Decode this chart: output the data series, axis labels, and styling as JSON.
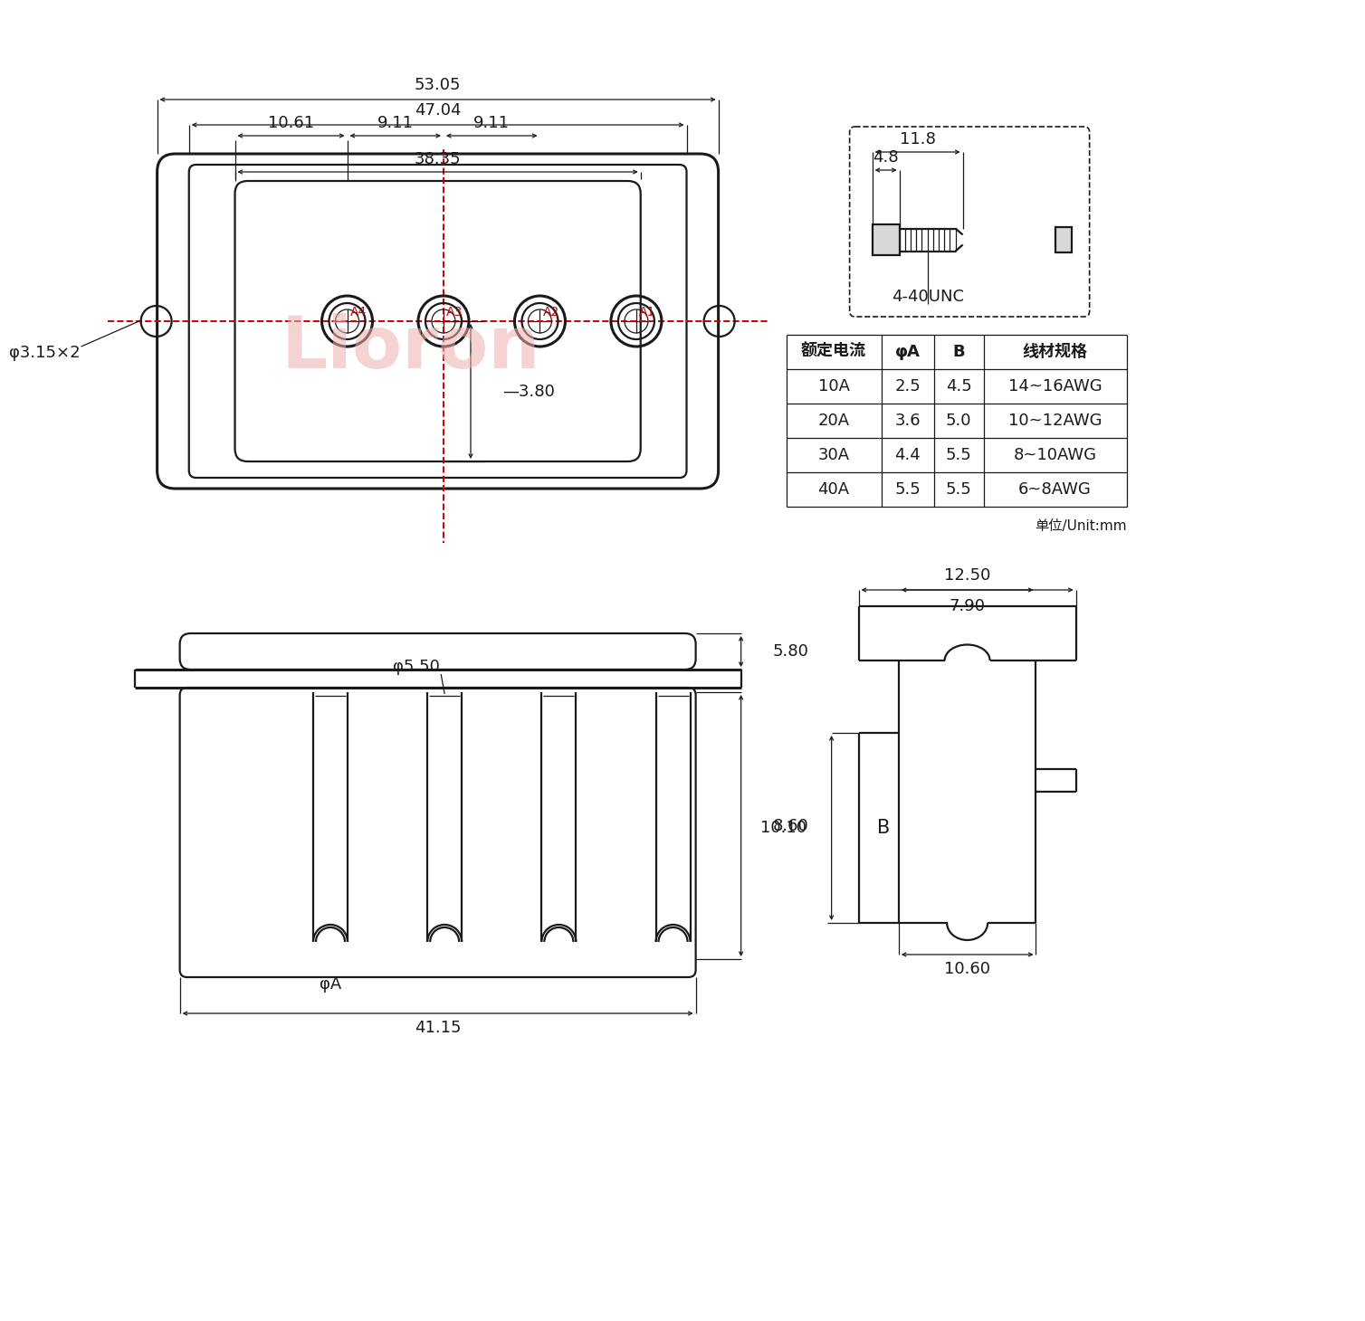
{
  "bg_color": "#ffffff",
  "lc": "#1a1a1a",
  "rc": "#cc0000",
  "wm_color": "#f0b0b0",
  "table_headers": [
    "额定电流",
    "φA",
    "B",
    "线材规格"
  ],
  "table_rows": [
    [
      "10A",
      "2.5",
      "4.5",
      "14~16AWG"
    ],
    [
      "20A",
      "3.6",
      "5.0",
      "10~12AWG"
    ],
    [
      "30A",
      "4.4",
      "5.5",
      "8~10AWG"
    ],
    [
      "40A",
      "5.5",
      "5.5",
      "6~8AWG"
    ]
  ],
  "unit_text": "单位/Unit:mm",
  "screw_label": "4-40UNC",
  "watermark": "Lioron",
  "dims": {
    "d5305": "53.05",
    "d4704": "47.04",
    "d3835": "38.35",
    "d1061": "10.61",
    "d911a": "9.11",
    "d911b": "9.11",
    "d380": "3.80",
    "dphi315": "φ3.15×2",
    "d580": "5.80",
    "dphi550": "φ5.50",
    "d860": "8.60",
    "dphiA": "φA",
    "d4115": "41.15",
    "d1250": "12.50",
    "d790": "7.90",
    "d1010": "10.10",
    "dB": "B",
    "d1060": "10.60",
    "d118": "11.8",
    "d48": "4.8"
  }
}
